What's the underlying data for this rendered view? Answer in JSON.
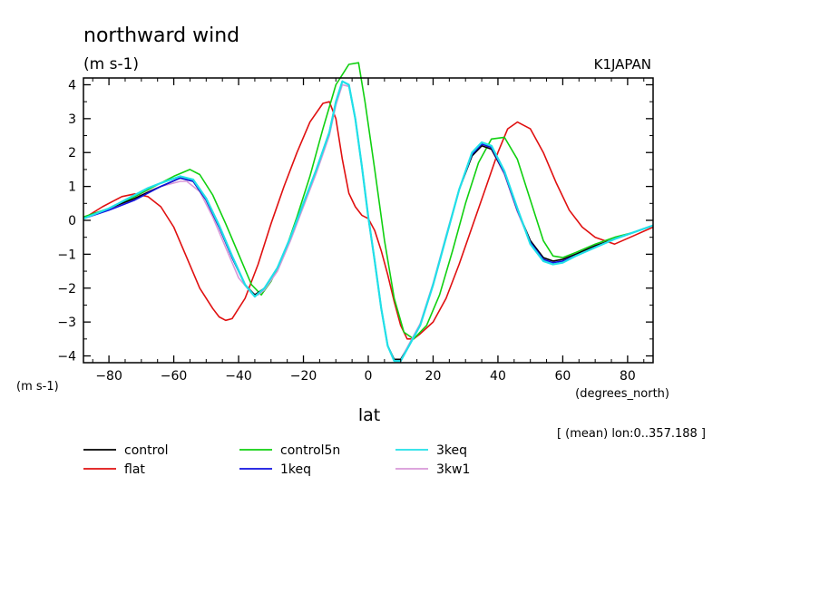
{
  "chart_data": {
    "type": "line",
    "title": "northward wind",
    "subtitle": "(m s-1)",
    "source_label": "K1JAPAN",
    "ylabel": "(m s-1)",
    "xlabel": "lat",
    "x_units": "(degrees_north)",
    "note": "[ (mean) lon:0..357.188 ]",
    "xlim": [
      -87.864,
      87.864
    ],
    "ylim": [
      -4.2,
      4.2
    ],
    "x_ticks": [
      -80,
      -60,
      -40,
      -20,
      0,
      20,
      40,
      60,
      80
    ],
    "y_ticks": [
      -4,
      -3,
      -2,
      -1,
      0,
      1,
      2,
      3,
      4
    ],
    "legend_position": "bottom",
    "series": [
      {
        "name": "control",
        "color": "#000000",
        "x": [
          -87.864,
          -80,
          -72,
          -64,
          -58,
          -54,
          -50,
          -46,
          -42,
          -38,
          -35,
          -32,
          -28,
          -24,
          -20,
          -16,
          -12,
          -10,
          -8,
          -6,
          -4,
          -2,
          0,
          2,
          4,
          6,
          8,
          10,
          12,
          16,
          20,
          24,
          28,
          32,
          35,
          38,
          42,
          46,
          50,
          54,
          57,
          60,
          64,
          70,
          76,
          82,
          87.864
        ],
        "y": [
          0.05,
          0.35,
          0.65,
          1.0,
          1.25,
          1.15,
          0.6,
          -0.2,
          -1.1,
          -1.9,
          -2.2,
          -2.0,
          -1.4,
          -0.5,
          0.5,
          1.5,
          2.6,
          3.5,
          4.1,
          4.0,
          3.0,
          1.6,
          0.1,
          -1.2,
          -2.6,
          -3.7,
          -4.1,
          -4.1,
          -3.8,
          -3.1,
          -1.9,
          -0.5,
          0.9,
          1.9,
          2.2,
          2.1,
          1.4,
          0.3,
          -0.6,
          -1.1,
          -1.2,
          -1.15,
          -1.0,
          -0.75,
          -0.55,
          -0.35,
          -0.15
        ]
      },
      {
        "name": "flat",
        "color": "#e01010",
        "x": [
          -87.864,
          -82,
          -76,
          -72,
          -68,
          -64,
          -60,
          -56,
          -52,
          -48,
          -46,
          -44,
          -42,
          -38,
          -34,
          -30,
          -26,
          -22,
          -18,
          -14,
          -12,
          -10,
          -8,
          -6,
          -4,
          -2,
          0,
          2,
          4,
          6,
          8,
          10,
          12,
          14,
          16,
          20,
          24,
          28,
          32,
          36,
          40,
          43,
          46,
          50,
          54,
          58,
          62,
          66,
          70,
          76,
          82,
          87.864
        ],
        "y": [
          0.05,
          0.4,
          0.7,
          0.78,
          0.7,
          0.4,
          -0.2,
          -1.1,
          -2.0,
          -2.6,
          -2.85,
          -2.95,
          -2.9,
          -2.3,
          -1.3,
          -0.1,
          1.0,
          2.0,
          2.9,
          3.45,
          3.5,
          3.0,
          1.8,
          0.8,
          0.4,
          0.15,
          0.05,
          -0.3,
          -0.9,
          -1.6,
          -2.4,
          -3.1,
          -3.5,
          -3.5,
          -3.35,
          -3.0,
          -2.3,
          -1.3,
          -0.2,
          0.9,
          2.0,
          2.7,
          2.9,
          2.7,
          2.0,
          1.1,
          0.3,
          -0.2,
          -0.5,
          -0.7,
          -0.45,
          -0.2
        ]
      },
      {
        "name": "control5n",
        "color": "#10d010",
        "x": [
          -87.864,
          -80,
          -72,
          -66,
          -60,
          -55,
          -52,
          -48,
          -44,
          -40,
          -36,
          -33,
          -30,
          -26,
          -22,
          -18,
          -14,
          -10,
          -6,
          -3,
          -1,
          2,
          5,
          8,
          11,
          14,
          18,
          22,
          26,
          30,
          34,
          38,
          42,
          46,
          50,
          54,
          57,
          60,
          64,
          70,
          76,
          82,
          87.864
        ],
        "y": [
          0.1,
          0.35,
          0.7,
          1.0,
          1.3,
          1.5,
          1.35,
          0.75,
          -0.1,
          -1.0,
          -1.9,
          -2.2,
          -1.8,
          -1.0,
          0.1,
          1.3,
          2.7,
          4.0,
          4.6,
          4.65,
          3.5,
          1.5,
          -0.6,
          -2.3,
          -3.3,
          -3.5,
          -3.1,
          -2.2,
          -0.9,
          0.5,
          1.7,
          2.4,
          2.45,
          1.8,
          0.6,
          -0.6,
          -1.05,
          -1.1,
          -0.95,
          -0.7,
          -0.5,
          -0.35,
          -0.15
        ]
      },
      {
        "name": "1keq",
        "color": "#1010e0",
        "x": [
          -87.864,
          -80,
          -72,
          -64,
          -58,
          -54,
          -50,
          -46,
          -42,
          -38,
          -35,
          -32,
          -28,
          -24,
          -20,
          -16,
          -12,
          -10,
          -8,
          -6,
          -4,
          -2,
          0,
          2,
          4,
          6,
          8,
          10,
          12,
          16,
          20,
          24,
          28,
          32,
          35,
          38,
          42,
          46,
          50,
          54,
          57,
          60,
          64,
          70,
          76,
          82,
          87.864
        ],
        "y": [
          0.05,
          0.3,
          0.6,
          1.0,
          1.25,
          1.15,
          0.6,
          -0.2,
          -1.1,
          -1.9,
          -2.25,
          -2.0,
          -1.4,
          -0.5,
          0.5,
          1.5,
          2.6,
          3.5,
          4.1,
          4.0,
          3.0,
          1.6,
          0.1,
          -1.2,
          -2.6,
          -3.7,
          -4.15,
          -4.15,
          -3.8,
          -3.1,
          -1.9,
          -0.5,
          0.9,
          1.95,
          2.25,
          2.15,
          1.4,
          0.3,
          -0.65,
          -1.15,
          -1.25,
          -1.2,
          -1.05,
          -0.8,
          -0.55,
          -0.35,
          -0.15
        ]
      },
      {
        "name": "3keq",
        "color": "#20e0e8",
        "x": [
          -87.864,
          -80,
          -72,
          -68,
          -64,
          -58,
          -54,
          -50,
          -46,
          -42,
          -38,
          -35,
          -32,
          -28,
          -24,
          -20,
          -16,
          -12,
          -10,
          -8,
          -6,
          -4,
          -2,
          0,
          2,
          4,
          6,
          8,
          10,
          12,
          16,
          20,
          24,
          28,
          32,
          35,
          38,
          42,
          46,
          50,
          54,
          57,
          60,
          64,
          70,
          76,
          82,
          87.864
        ],
        "y": [
          0.05,
          0.35,
          0.75,
          0.95,
          1.1,
          1.3,
          1.2,
          0.65,
          -0.15,
          -1.05,
          -1.9,
          -2.25,
          -2.0,
          -1.4,
          -0.5,
          0.5,
          1.5,
          2.6,
          3.5,
          4.1,
          4.0,
          3.0,
          1.6,
          0.1,
          -1.2,
          -2.6,
          -3.7,
          -4.15,
          -4.15,
          -3.8,
          -3.1,
          -1.9,
          -0.5,
          0.9,
          2.0,
          2.3,
          2.2,
          1.45,
          0.35,
          -0.7,
          -1.2,
          -1.3,
          -1.25,
          -1.05,
          -0.8,
          -0.55,
          -0.35,
          -0.15
        ]
      },
      {
        "name": "3kw1",
        "color": "#d898d8",
        "x": [
          -87.864,
          -80,
          -72,
          -68,
          -64,
          -58,
          -56,
          -52,
          -48,
          -44,
          -40,
          -36,
          -34,
          -32,
          -28,
          -24,
          -20,
          -16,
          -12,
          -10,
          -8,
          -6,
          -4,
          -2,
          0,
          2,
          4,
          6,
          8,
          10,
          12,
          16,
          20,
          24,
          28,
          32,
          35,
          38,
          42,
          46,
          50,
          54,
          57,
          60,
          64,
          70,
          76,
          82,
          87.864
        ],
        "y": [
          0.05,
          0.3,
          0.65,
          0.85,
          1.0,
          1.15,
          1.15,
          0.85,
          0.1,
          -0.8,
          -1.7,
          -2.15,
          -2.2,
          -2.05,
          -1.5,
          -0.6,
          0.4,
          1.4,
          2.5,
          3.4,
          4.0,
          3.95,
          3.0,
          1.6,
          0.1,
          -1.2,
          -2.6,
          -3.7,
          -4.1,
          -4.1,
          -3.75,
          -3.05,
          -1.85,
          -0.45,
          0.9,
          1.95,
          2.2,
          2.1,
          1.35,
          0.25,
          -0.65,
          -1.15,
          -1.25,
          -1.2,
          -1.05,
          -0.8,
          -0.55,
          -0.35,
          -0.15
        ]
      }
    ]
  }
}
